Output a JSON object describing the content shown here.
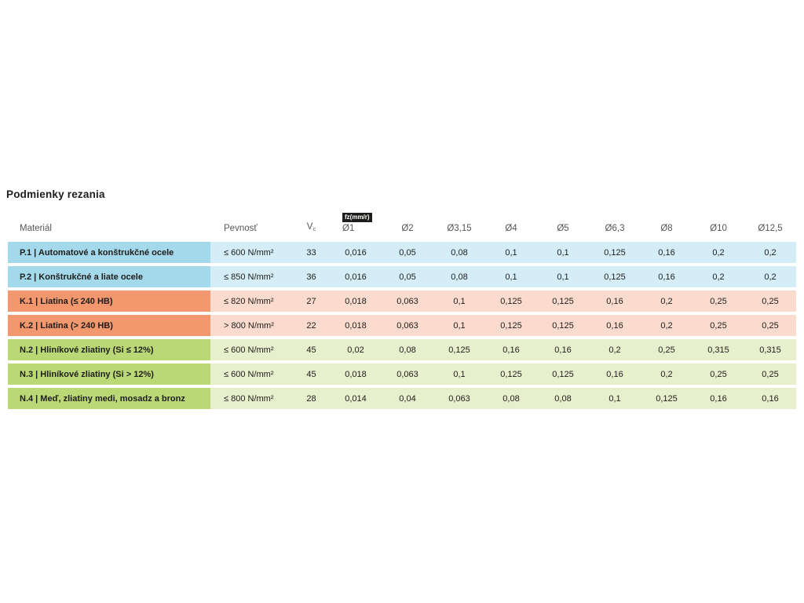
{
  "title": "Podmienky rezania",
  "chart_data": {
    "type": "table",
    "title": "Podmienky rezania",
    "header": {
      "material": "Materiál",
      "strength": "Pevnosť",
      "vc": "V",
      "vc_subscript": "c",
      "fz_unit_badge": "fz(mm/r)",
      "diameters": [
        "Ø1",
        "Ø2",
        "Ø3,15",
        "Ø4",
        "Ø5",
        "Ø6,3",
        "Ø8",
        "Ø10",
        "Ø12,5"
      ]
    },
    "rows": [
      {
        "group": "P",
        "material": "P.1 | Automatové a konštrukčné ocele",
        "strength": "≤ 600 N/mm²",
        "vc": "33",
        "fz": [
          "0,016",
          "0,05",
          "0,08",
          "0,1",
          "0,1",
          "0,125",
          "0,16",
          "0,2",
          "0,2"
        ]
      },
      {
        "group": "P",
        "material": "P.2 | Konštrukčné a liate ocele",
        "strength": "≤ 850 N/mm²",
        "vc": "36",
        "fz": [
          "0,016",
          "0,05",
          "0,08",
          "0,1",
          "0,1",
          "0,125",
          "0,16",
          "0,2",
          "0,2"
        ]
      },
      {
        "group": "K",
        "material": "K.1 | Liatina (≤ 240 HB)",
        "strength": "≤ 820 N/mm²",
        "vc": "27",
        "fz": [
          "0,018",
          "0,063",
          "0,1",
          "0,125",
          "0,125",
          "0,16",
          "0,2",
          "0,25",
          "0,25"
        ]
      },
      {
        "group": "K",
        "material": "K.2 | Liatina (> 240 HB)",
        "strength": "> 800 N/mm²",
        "vc": "22",
        "fz": [
          "0,018",
          "0,063",
          "0,1",
          "0,125",
          "0,125",
          "0,16",
          "0,2",
          "0,25",
          "0,25"
        ]
      },
      {
        "group": "N",
        "material": "N.2 | Hliníkové zliatiny (Si ≤ 12%)",
        "strength": "≤ 600 N/mm²",
        "vc": "45",
        "fz": [
          "0,02",
          "0,08",
          "0,125",
          "0,16",
          "0,16",
          "0,2",
          "0,25",
          "0,315",
          "0,315"
        ]
      },
      {
        "group": "N",
        "material": "N.3 | Hliníkové zliatiny (Si > 12%)",
        "strength": "≤ 600 N/mm²",
        "vc": "45",
        "fz": [
          "0,018",
          "0,063",
          "0,1",
          "0,125",
          "0,125",
          "0,16",
          "0,2",
          "0,25",
          "0,25"
        ]
      },
      {
        "group": "N",
        "material": "N.4 | Meď, zliatiny medi, mosadz a bronz",
        "strength": "≤ 800 N/mm²",
        "vc": "28",
        "fz": [
          "0,014",
          "0,04",
          "0,063",
          "0,08",
          "0,08",
          "0,1",
          "0,125",
          "0,16",
          "0,16"
        ]
      }
    ]
  },
  "colors": {
    "page_bg": "#ffffff",
    "title_text": "#1d1d1b",
    "header_text": "#55565a",
    "cell_text": "#1d1d1b",
    "badge_bg": "#1d1d1b",
    "badge_text": "#ffffff",
    "group_P_dark": "#a4d9ec",
    "group_P_light": "#d5edf7",
    "group_K_dark": "#f2976e",
    "group_K_light": "#fbdbcd",
    "group_N_dark": "#bbd876",
    "group_N_light": "#e7efcd"
  }
}
